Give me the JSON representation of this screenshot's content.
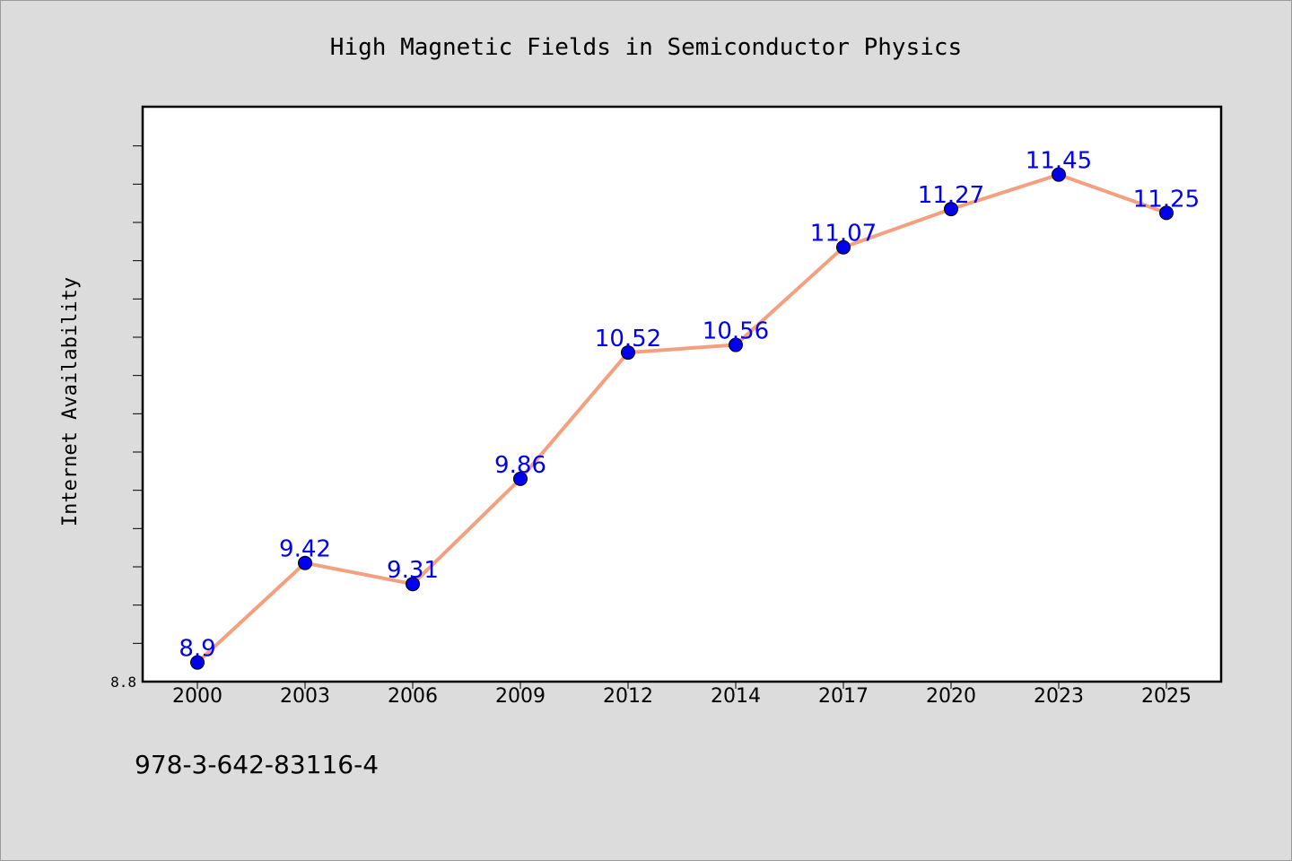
{
  "chart_data": {
    "type": "line",
    "title": "High Magnetic Fields in Semiconductor Physics",
    "xlabel": "",
    "ylabel": "Internet Availability",
    "categories": [
      "2000",
      "2003",
      "2006",
      "2009",
      "2012",
      "2014",
      "2017",
      "2020",
      "2023",
      "2025"
    ],
    "values": [
      8.9,
      9.42,
      9.31,
      9.86,
      10.52,
      10.56,
      11.07,
      11.27,
      11.45,
      11.25
    ],
    "data_labels": [
      "8.9",
      "9.42",
      "9.31",
      "9.86",
      "10.52",
      "10.56",
      "11.07",
      "11.27",
      "11.45",
      "11.25"
    ],
    "ylim": [
      8.8,
      11.8
    ],
    "y_tick_labels": [
      "8.8"
    ],
    "grid": false,
    "legend": "none",
    "colors": {
      "line": "#f4a07e",
      "marker": "#0000ee",
      "label": "#0000ee",
      "background": "#dcdcdc",
      "plot_area": "#ffffff"
    }
  },
  "footer": {
    "isbn": "978-3-642-83116-4"
  }
}
